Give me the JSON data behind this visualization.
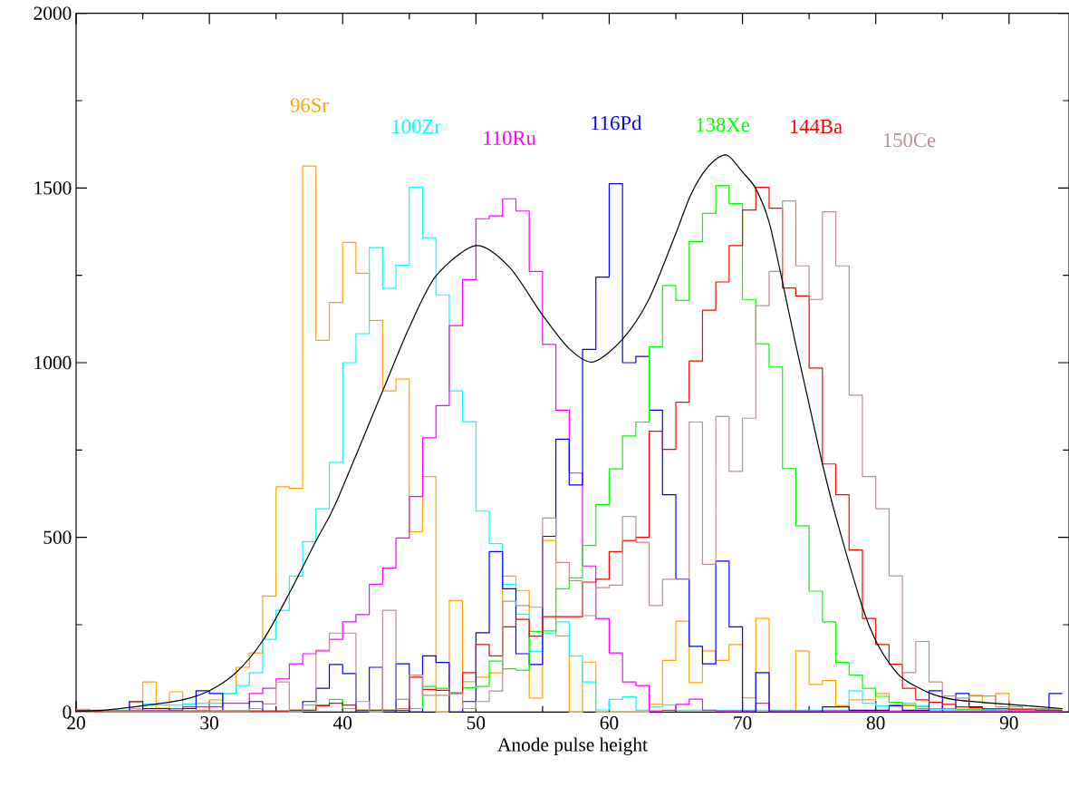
{
  "chart_data": {
    "type": "histogram",
    "xlabel": "Anode pulse height",
    "xlim": [
      20,
      94.5
    ],
    "ylim": [
      0,
      2000
    ],
    "xticks": [
      20,
      30,
      40,
      50,
      60,
      70,
      80,
      90
    ],
    "yticks": [
      0,
      500,
      1000,
      1500,
      2000
    ],
    "bins": [
      20,
      21,
      22,
      23,
      24,
      25,
      26,
      27,
      28,
      29,
      30,
      31,
      32,
      33,
      34,
      35,
      36,
      37,
      38,
      39,
      40,
      41,
      42,
      43,
      44,
      45,
      46,
      47,
      48,
      49,
      50,
      51,
      52,
      53,
      54,
      55,
      56,
      57,
      58,
      59,
      60,
      61,
      62,
      63,
      64,
      65,
      66,
      67,
      68,
      69,
      70,
      71,
      72,
      73,
      74,
      75,
      76,
      77,
      78,
      79,
      80,
      81,
      82,
      83,
      84,
      85,
      86,
      87,
      88,
      89,
      90,
      91,
      92,
      93,
      94
    ],
    "series": [
      {
        "name": "96Sr",
        "color": "#ffa500",
        "values": [
          5,
          3,
          0,
          0,
          28,
          86,
          11,
          58,
          10,
          5,
          35,
          53,
          128,
          169,
          332,
          645,
          640,
          1563,
          1064,
          1172,
          1344,
          1256,
          1121,
          919,
          953,
          516,
          674,
          0,
          319,
          87,
          100,
          112,
          389,
          348,
          40,
          491,
          218,
          0,
          143,
          0,
          0,
          0,
          0,
          22,
          148,
          260,
          84,
          175,
          148,
          193,
          41,
          268,
          0,
          0,
          175,
          79,
          90,
          18,
          35,
          35,
          53,
          28,
          18,
          15,
          10,
          10,
          15,
          48,
          25,
          53,
          10,
          10,
          5,
          5
        ]
      },
      {
        "name": "100Zr",
        "color": "#00ffff",
        "values": [
          0,
          0,
          5,
          5,
          10,
          23,
          20,
          20,
          23,
          25,
          25,
          53,
          76,
          113,
          208,
          291,
          389,
          488,
          582,
          715,
          1000,
          1083,
          1329,
          1213,
          1279,
          1502,
          1358,
          1194,
          919,
          831,
          575,
          482,
          365,
          280,
          174,
          226,
          258,
          160,
          86,
          6,
          36,
          44,
          5,
          15,
          20,
          5,
          5,
          5,
          5,
          5,
          5,
          5,
          5,
          5,
          5,
          5,
          5,
          5,
          61,
          25,
          18,
          20,
          25,
          18,
          8,
          8,
          8,
          8,
          8,
          5,
          5,
          5,
          5,
          5
        ]
      },
      {
        "name": "110Ru",
        "color": "#ff00ff",
        "values": [
          0,
          0,
          0,
          3,
          5,
          5,
          5,
          10,
          15,
          15,
          15,
          25,
          25,
          53,
          68,
          95,
          138,
          167,
          175,
          208,
          258,
          279,
          366,
          412,
          498,
          617,
          785,
          877,
          1106,
          1238,
          1412,
          1420,
          1469,
          1434,
          1261,
          1052,
          864,
          684,
          418,
          268,
          169,
          86,
          76,
          3,
          5,
          22,
          37,
          5,
          3,
          3,
          3,
          25,
          3,
          3,
          3,
          3,
          3,
          3,
          3,
          3,
          3,
          3,
          3,
          3,
          3,
          3,
          3,
          3,
          3,
          3,
          3,
          3,
          3,
          3
        ]
      },
      {
        "name": "116Pd",
        "color": "#0000ff",
        "values": [
          0,
          0,
          0,
          0,
          30,
          10,
          10,
          5,
          10,
          61,
          53,
          0,
          0,
          30,
          0,
          0,
          0,
          30,
          68,
          136,
          110,
          0,
          128,
          0,
          138,
          0,
          161,
          142,
          0,
          30,
          227,
          459,
          353,
          167,
          136,
          503,
          781,
          650,
          1038,
          1245,
          1512,
          1000,
          1018,
          864,
          622,
          381,
          188,
          138,
          432,
          244,
          0,
          113,
          0,
          0,
          0,
          0,
          15,
          15,
          5,
          5,
          5,
          18,
          5,
          5,
          61,
          10,
          53,
          15,
          5,
          5,
          5,
          5,
          5,
          53
        ]
      },
      {
        "name": "138Xe",
        "color": "#00ff00",
        "values": [
          0,
          0,
          0,
          0,
          0,
          0,
          0,
          0,
          0,
          0,
          0,
          0,
          0,
          0,
          0,
          0,
          5,
          5,
          20,
          36,
          10,
          5,
          5,
          5,
          10,
          10,
          73,
          68,
          55,
          70,
          73,
          146,
          124,
          120,
          231,
          232,
          353,
          384,
          477,
          594,
          696,
          790,
          830,
          1045,
          1221,
          1178,
          1347,
          1427,
          1507,
          1455,
          1181,
          1054,
          989,
          697,
          533,
          346,
          258,
          142,
          106,
          68,
          45,
          28,
          20,
          10,
          10,
          10,
          8,
          8,
          5,
          5,
          5,
          5,
          5,
          5
        ]
      },
      {
        "name": "144Ba",
        "color": "#ff0000",
        "values": [
          3,
          3,
          3,
          3,
          3,
          3,
          3,
          3,
          3,
          3,
          3,
          3,
          3,
          3,
          3,
          3,
          5,
          5,
          18,
          25,
          20,
          5,
          5,
          5,
          5,
          100,
          65,
          62,
          53,
          113,
          193,
          161,
          244,
          265,
          217,
          273,
          273,
          273,
          372,
          380,
          459,
          491,
          500,
          804,
          752,
          887,
          1005,
          1150,
          1231,
          1335,
          1437,
          1502,
          1442,
          1214,
          1191,
          985,
          710,
          622,
          464,
          268,
          193,
          137,
          68,
          35,
          28,
          22,
          15,
          12,
          10,
          10,
          8,
          8,
          5,
          5
        ]
      },
      {
        "name": "150Ce",
        "color": "#bc8f8f",
        "values": [
          8,
          5,
          3,
          3,
          3,
          3,
          3,
          3,
          3,
          3,
          3,
          3,
          3,
          10,
          23,
          86,
          0,
          20,
          177,
          226,
          226,
          30,
          0,
          291,
          36,
          106,
          48,
          48,
          55,
          10,
          30,
          60,
          317,
          305,
          300,
          555,
          428,
          376,
          276,
          356,
          363,
          560,
          486,
          305,
          380,
          380,
          830,
          423,
          846,
          689,
          841,
          1163,
          1261,
          1463,
          1277,
          1181,
          1432,
          1277,
          907,
          674,
          582,
          390,
          113,
          202,
          86,
          46,
          40,
          46,
          46,
          15,
          15,
          10,
          10,
          10
        ]
      },
      {
        "type": "line",
        "color": "#000000",
        "x": [
          20,
          22,
          25,
          28,
          30,
          32,
          34,
          36,
          38,
          39.5,
          43,
          45,
          47,
          50,
          52.5,
          55,
          57,
          58.8,
          61,
          63,
          65,
          66,
          67,
          68,
          68.9,
          70,
          71,
          72,
          73,
          74,
          75,
          76,
          77,
          79,
          80,
          81,
          82,
          84,
          86,
          90,
          94
        ],
        "values": [
          3,
          5,
          18,
          35,
          61,
          113,
          204,
          340,
          490,
          599,
          919,
          1101,
          1248,
          1335,
          1274,
          1136,
          1040,
          1002,
          1067,
          1183,
          1370,
          1470,
          1540,
          1582,
          1593,
          1546,
          1498,
          1402,
          1231,
          1051,
          881,
          710,
          560,
          300,
          204,
          141,
          97,
          55,
          35,
          22,
          10
        ]
      }
    ]
  }
}
